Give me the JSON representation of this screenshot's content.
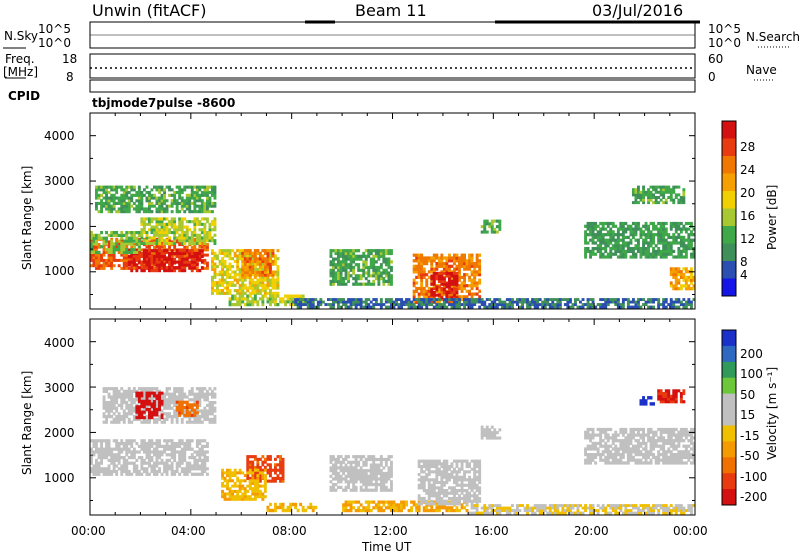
{
  "header": {
    "station": "Unwin (fitACF)",
    "beam": "Beam 11",
    "date": "03/Jul/2016"
  },
  "top_panels": {
    "nsky_label": "N.Sky",
    "nsky_ticks": [
      "10^5",
      "10^0"
    ],
    "nsearch_label": "N.Search",
    "nsearch_ticks": [
      "10^5",
      "10^0"
    ],
    "freq_label": "Freq.",
    "freq_unit": "[MHz]",
    "freq_ticks": [
      "18",
      "8"
    ],
    "nave_label": "Nave",
    "nave_ticks": [
      "60",
      "0"
    ],
    "cpid_label": "CPID",
    "cpid_text": "tbjmode7pulse  -8600"
  },
  "x_axis": {
    "label": "Time UT",
    "ticks": [
      "00:00",
      "04:00",
      "08:00",
      "12:00",
      "16:00",
      "20:00",
      "00:00"
    ]
  },
  "y_axis": {
    "label": "Slant Range [km]",
    "ticks": [
      "1000",
      "2000",
      "3000",
      "4000"
    ]
  },
  "power_colorbar": {
    "label": "Power [dB]",
    "ticks": [
      "4",
      "8",
      "12",
      "16",
      "20",
      "24",
      "28"
    ],
    "colors": [
      "#1515e8",
      "#2a4fb0",
      "#3f8f5a",
      "#3fa848",
      "#a8c832",
      "#f0d000",
      "#f5a000",
      "#f07800",
      "#e83c10",
      "#d41010"
    ]
  },
  "velocity_colorbar": {
    "label": "Velocity [m s⁻¹]",
    "ticks": [
      "200",
      "100",
      "50",
      "15",
      "-15",
      "-50",
      "-100",
      "-200"
    ],
    "colors": [
      "#1a30c8",
      "#2e68c0",
      "#2f9a5a",
      "#6cc83a",
      "#c0c0c0",
      "#c0c0c0",
      "#f0c000",
      "#f59a00",
      "#f07000",
      "#e83c10",
      "#d41010"
    ]
  },
  "chart_data": [
    {
      "type": "heatmap",
      "name": "power",
      "xlim": [
        0,
        24
      ],
      "ylim": [
        180,
        4500
      ],
      "x_unit": "hours UT",
      "y_unit": "km",
      "value_range": [
        0,
        30
      ],
      "blobs": [
        {
          "x0": 0.0,
          "x1": 4.7,
          "y0": 1050,
          "y1": 1750,
          "value": 24
        },
        {
          "x0": 1.5,
          "x1": 4.5,
          "y0": 1000,
          "y1": 1500,
          "value": 28
        },
        {
          "x0": 0.0,
          "x1": 2.0,
          "y0": 1400,
          "y1": 1900,
          "value": 12
        },
        {
          "x0": 0.2,
          "x1": 5.0,
          "y0": 2300,
          "y1": 2900,
          "value": 10
        },
        {
          "x0": 2.0,
          "x1": 5.0,
          "y0": 1600,
          "y1": 2200,
          "value": 14
        },
        {
          "x0": 4.8,
          "x1": 7.5,
          "y0": 500,
          "y1": 1500,
          "value": 16
        },
        {
          "x0": 6.0,
          "x1": 7.3,
          "y0": 900,
          "y1": 1500,
          "value": 22
        },
        {
          "x0": 5.5,
          "x1": 8.5,
          "y0": 250,
          "y1": 500,
          "value": 14
        },
        {
          "x0": 9.5,
          "x1": 12.0,
          "y0": 700,
          "y1": 1500,
          "value": 10
        },
        {
          "x0": 12.8,
          "x1": 15.5,
          "y0": 300,
          "y1": 1400,
          "value": 22
        },
        {
          "x0": 13.5,
          "x1": 14.6,
          "y0": 400,
          "y1": 1000,
          "value": 28
        },
        {
          "x0": 8.0,
          "x1": 24.0,
          "y0": 200,
          "y1": 420,
          "value": 6
        },
        {
          "x0": 19.6,
          "x1": 24.0,
          "y0": 1300,
          "y1": 2100,
          "value": 9
        },
        {
          "x0": 23.0,
          "x1": 24.0,
          "y0": 600,
          "y1": 1100,
          "value": 20
        },
        {
          "x0": 21.5,
          "x1": 23.6,
          "y0": 2500,
          "y1": 2900,
          "value": 10
        },
        {
          "x0": 15.5,
          "x1": 16.3,
          "y0": 1850,
          "y1": 2150,
          "value": 11
        }
      ]
    },
    {
      "type": "heatmap",
      "name": "velocity",
      "xlim": [
        0,
        24
      ],
      "ylim": [
        180,
        4500
      ],
      "x_unit": "hours UT",
      "y_unit": "km",
      "value_range": [
        -250,
        250
      ],
      "blobs": [
        {
          "x0": 0.0,
          "x1": 4.7,
          "y0": 1050,
          "y1": 1850,
          "value": 0
        },
        {
          "x0": 0.5,
          "x1": 5.0,
          "y0": 2200,
          "y1": 3000,
          "value": 5
        },
        {
          "x0": 1.8,
          "x1": 2.9,
          "y0": 2300,
          "y1": 2900,
          "value": -220
        },
        {
          "x0": 3.4,
          "x1": 4.3,
          "y0": 2350,
          "y1": 2700,
          "value": -150
        },
        {
          "x0": 6.2,
          "x1": 7.7,
          "y0": 900,
          "y1": 1500,
          "value": -170
        },
        {
          "x0": 5.2,
          "x1": 7.0,
          "y0": 500,
          "y1": 1200,
          "value": -60
        },
        {
          "x0": 7.0,
          "x1": 9.0,
          "y0": 250,
          "y1": 450,
          "value": -60
        },
        {
          "x0": 9.5,
          "x1": 12.0,
          "y0": 700,
          "y1": 1500,
          "value": 0
        },
        {
          "x0": 10.0,
          "x1": 15.0,
          "y0": 250,
          "y1": 500,
          "value": -70
        },
        {
          "x0": 13.0,
          "x1": 15.5,
          "y0": 400,
          "y1": 1400,
          "value": 0
        },
        {
          "x0": 15.0,
          "x1": 24.0,
          "y0": 200,
          "y1": 420,
          "value": -20
        },
        {
          "x0": 19.6,
          "x1": 24.0,
          "y0": 1300,
          "y1": 2100,
          "value": 0
        },
        {
          "x0": 22.5,
          "x1": 23.6,
          "y0": 2650,
          "y1": 2950,
          "value": -210
        },
        {
          "x0": 21.8,
          "x1": 22.4,
          "y0": 2600,
          "y1": 2800,
          "value": 230
        },
        {
          "x0": 15.5,
          "x1": 16.3,
          "y0": 1850,
          "y1": 2150,
          "value": 0
        }
      ]
    }
  ]
}
